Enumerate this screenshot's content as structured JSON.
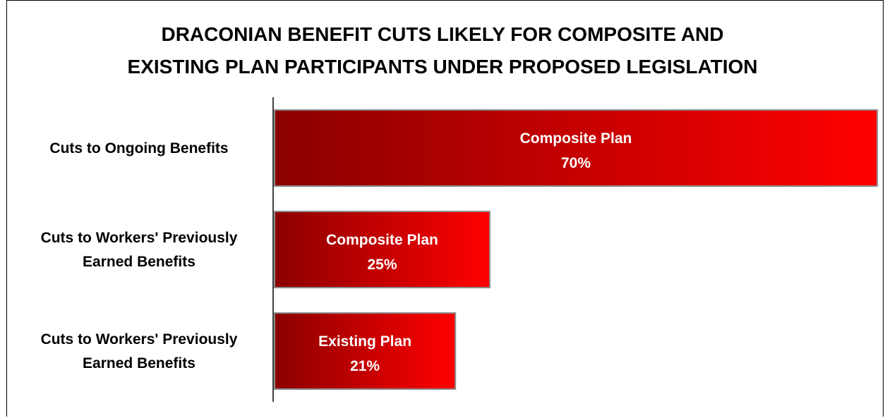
{
  "chart_data": {
    "type": "bar",
    "orientation": "horizontal",
    "title_lines": [
      "DRACONIAN BENEFIT CUTS LIKELY FOR COMPOSITE AND",
      "EXISTING PLAN PARTICIPANTS UNDER PROPOSED LEGISLATION"
    ],
    "categories": [
      [
        "Cuts to Ongoing Benefits"
      ],
      [
        "Cuts to Workers' Previously",
        "Earned Benefits"
      ],
      [
        "Cuts to Workers' Previously",
        "Earned Benefits"
      ]
    ],
    "bars": [
      {
        "plan": "Composite Plan",
        "value": 70,
        "value_label": "70%"
      },
      {
        "plan": "Composite Plan",
        "value": 25,
        "value_label": "25%"
      },
      {
        "plan": "Existing Plan",
        "value": 21,
        "value_label": "21%"
      }
    ],
    "xlim": [
      0,
      70
    ],
    "grid": false,
    "colors": {
      "bar_dark": "#8b0000",
      "bar_light": "#ff0000",
      "bar_border": "#8c8c8c"
    }
  }
}
